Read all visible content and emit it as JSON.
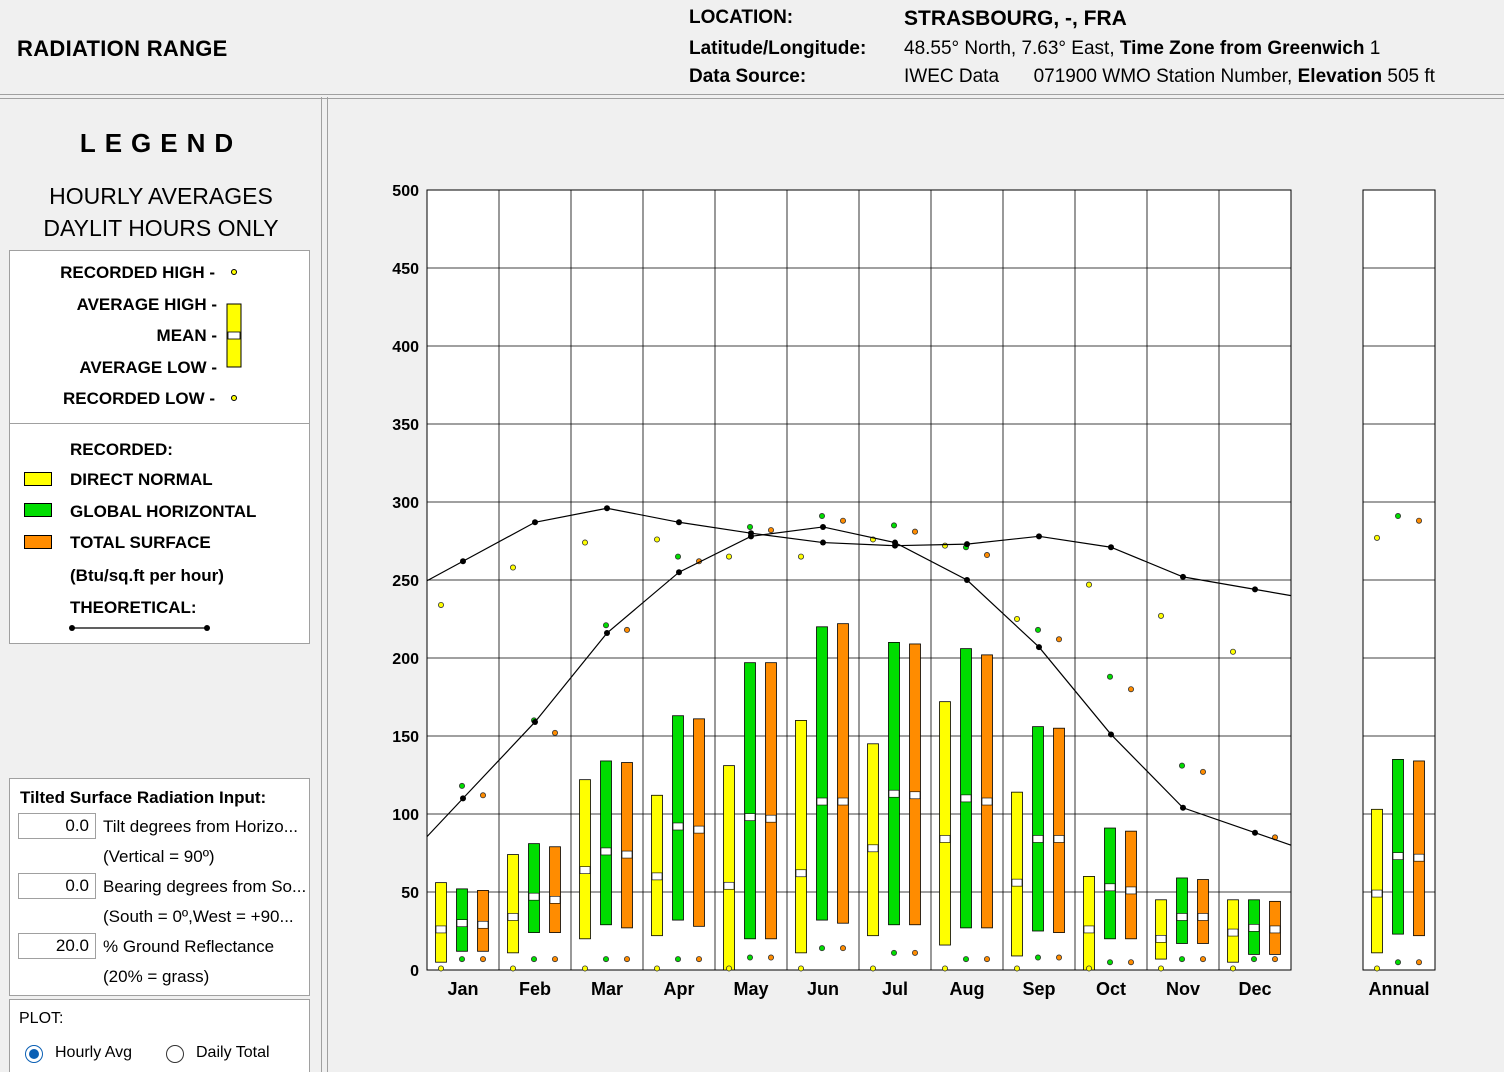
{
  "header": {
    "title": "RADIATION RANGE",
    "location_label": "LOCATION:",
    "location_value": "STRASBOURG, -, FRA",
    "latlon_label": "Latitude/Longitude:",
    "latlon_value": "48.55° North, 7.63° East,",
    "tz_label": "Time Zone from Greenwich",
    "tz_value": "1",
    "source_label": "Data Source:",
    "source_value": "IWEC Data",
    "station_value": "071900 WMO Station Number,",
    "elev_label": "Elevation",
    "elev_value": "505 ft"
  },
  "legend": {
    "title": "LEGEND",
    "subtitle1": "HOURLY AVERAGES",
    "subtitle2": "DAYLIT HOURS ONLY",
    "recorded_high": "RECORDED HIGH -",
    "average_high": "AVERAGE HIGH -",
    "mean": "MEAN -",
    "average_low": "AVERAGE LOW -",
    "recorded_low": "RECORDED LOW -",
    "recorded": "RECORDED:",
    "direct_normal": "DIRECT NORMAL",
    "global_horizontal": "GLOBAL HORIZONTAL",
    "total_surface": "TOTAL SURFACE",
    "units": "(Btu/sq.ft per hour)",
    "theoretical": "THEORETICAL:"
  },
  "tilt": {
    "title": "Tilted Surface Radiation Input:",
    "tilt_value": "0.0",
    "tilt_label": "Tilt degrees from Horizo...",
    "tilt_note": "(Vertical = 90º)",
    "bearing_value": "0.0",
    "bearing_label": "Bearing degrees from So...",
    "bearing_note": "(South = 0º,West = +90...",
    "refl_value": "20.0",
    "refl_label": "% Ground Reflectance",
    "refl_note": "(20% = grass)"
  },
  "plot": {
    "label": "PLOT:",
    "opt_hourly": "Hourly Avg",
    "opt_daily": "Daily Total",
    "selected": "hourly"
  },
  "colors": {
    "direct": "#ffff00",
    "global": "#00dd00",
    "total": "#ff8c00"
  },
  "chart_data": {
    "type": "bar",
    "ylim": [
      0,
      500
    ],
    "yticks": [
      "0",
      "50",
      "100",
      "150",
      "200",
      "250",
      "300",
      "350",
      "400",
      "450",
      "500"
    ],
    "categories": [
      "Jan",
      "Feb",
      "Mar",
      "Apr",
      "May",
      "Jun",
      "Jul",
      "Aug",
      "Sep",
      "Oct",
      "Nov",
      "Dec",
      "Annual"
    ],
    "series": [
      {
        "name": "DIRECT NORMAL",
        "avg_high": [
          56,
          74,
          122,
          112,
          131,
          160,
          145,
          172,
          114,
          60,
          45,
          45,
          103
        ],
        "mean": [
          26,
          34,
          64,
          60,
          54,
          62,
          78,
          84,
          56,
          26,
          20,
          24,
          49
        ],
        "avg_low": [
          5,
          11,
          20,
          22,
          0,
          11,
          22,
          16,
          9,
          0,
          7,
          5,
          11
        ],
        "rec_high": [
          234,
          258,
          274,
          276,
          265,
          265,
          276,
          272,
          225,
          247,
          227,
          204,
          277
        ],
        "rec_low": [
          1,
          1,
          1,
          1,
          1,
          1,
          1,
          1,
          1,
          1,
          1,
          1,
          1
        ]
      },
      {
        "name": "GLOBAL HORIZONTAL",
        "avg_high": [
          52,
          81,
          134,
          163,
          197,
          220,
          210,
          206,
          156,
          91,
          59,
          45,
          135
        ],
        "mean": [
          30,
          47,
          76,
          92,
          98,
          108,
          113,
          110,
          84,
          53,
          34,
          27,
          73
        ],
        "avg_low": [
          12,
          24,
          29,
          32,
          20,
          32,
          29,
          27,
          25,
          20,
          17,
          10,
          23
        ],
        "rec_high": [
          118,
          160,
          221,
          265,
          284,
          291,
          285,
          271,
          218,
          188,
          131,
          null,
          291
        ],
        "rec_low": [
          7,
          7,
          7,
          7,
          8,
          14,
          11,
          7,
          8,
          5,
          7,
          7,
          5
        ]
      },
      {
        "name": "TOTAL SURFACE",
        "avg_high": [
          51,
          79,
          133,
          161,
          197,
          222,
          209,
          202,
          155,
          89,
          58,
          44,
          134
        ],
        "mean": [
          29,
          45,
          74,
          90,
          97,
          108,
          112,
          108,
          84,
          51,
          34,
          26,
          72
        ],
        "avg_low": [
          12,
          24,
          27,
          28,
          20,
          30,
          29,
          27,
          24,
          20,
          17,
          10,
          22
        ],
        "rec_high": [
          112,
          152,
          218,
          262,
          282,
          288,
          281,
          266,
          212,
          180,
          127,
          85,
          288
        ],
        "rec_low": [
          7,
          7,
          7,
          7,
          8,
          14,
          11,
          7,
          8,
          5,
          7,
          7,
          5
        ]
      }
    ],
    "theoretical_direct": [
      262,
      287,
      296,
      287,
      280,
      274,
      272,
      273,
      278,
      271,
      252,
      244
    ],
    "theoretical_global": [
      110,
      159,
      216,
      255,
      278,
      284,
      274,
      250,
      207,
      151,
      104,
      88
    ]
  }
}
